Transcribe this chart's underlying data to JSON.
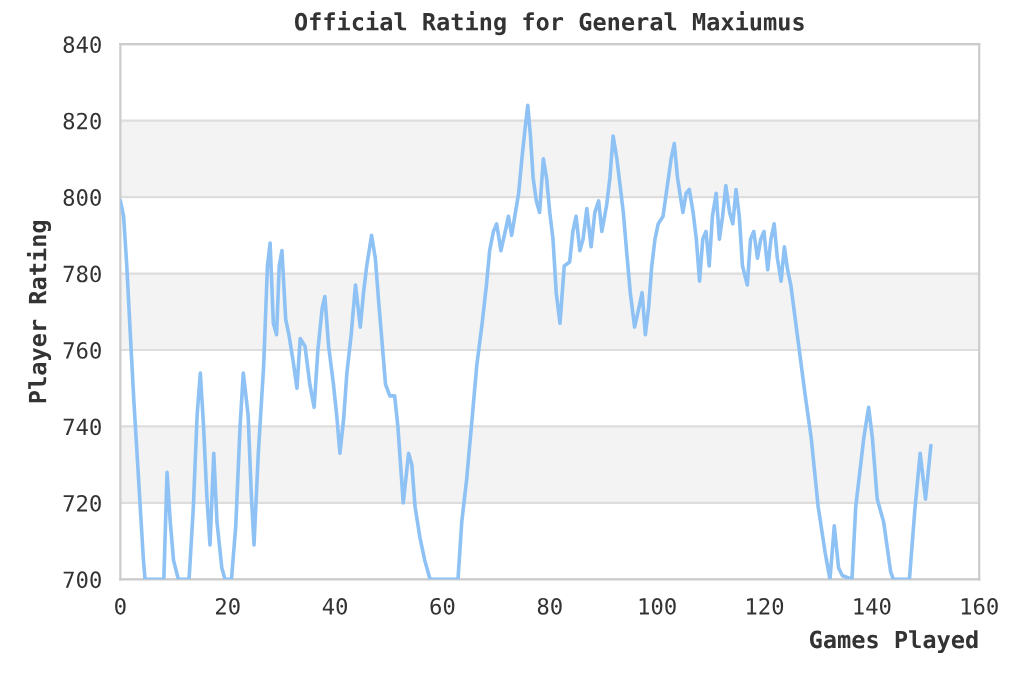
{
  "chart_data": {
    "type": "line",
    "title": "Official Rating for General Maxiumus",
    "xlabel": "Games Played",
    "ylabel": "Player Rating",
    "xlim": [
      0,
      160
    ],
    "xticks": [
      0,
      20,
      40,
      60,
      80,
      100,
      120,
      140,
      160
    ],
    "ylim": [
      700,
      840
    ],
    "yticks": [
      700,
      720,
      740,
      760,
      780,
      800,
      820,
      840
    ],
    "grid": "y",
    "marker": "none",
    "line_style": "solid",
    "bands": [
      {
        "axis": "y",
        "from": 720,
        "to": 740,
        "color": "#f3f3f3"
      },
      {
        "axis": "y",
        "from": 760,
        "to": 780,
        "color": "#f3f3f3"
      },
      {
        "axis": "y",
        "from": 800,
        "to": 820,
        "color": "#f3f3f3"
      }
    ],
    "series": [
      {
        "color": "#8ec2f5",
        "x": [
          0,
          0.6,
          1.2,
          1.9,
          2.5,
          3.1,
          3.7,
          4.3,
          4.6,
          8.1,
          8.7,
          9.3,
          9.9,
          10.8,
          12.8,
          13.6,
          14.3,
          14.9,
          15.5,
          16.1,
          16.7,
          17.4,
          18,
          18.9,
          19.5,
          20.7,
          21.5,
          22.3,
          22.9,
          23.8,
          24.4,
          24.9,
          25.7,
          26.7,
          27.4,
          27.9,
          28.5,
          29.1,
          29.6,
          30.1,
          30.8,
          31.4,
          32.2,
          32.9,
          33.5,
          34.4,
          35.3,
          36.1,
          36.8,
          37.6,
          38.1,
          38.8,
          39.7,
          40.3,
          40.9,
          41.6,
          42.2,
          43,
          43.8,
          44.7,
          45.3,
          45.9,
          46.8,
          47.5,
          48.1,
          48.7,
          49.4,
          50.2,
          51.1,
          51.7,
          52.7,
          53.7,
          54.3,
          54.9,
          55.8,
          56.7,
          57.7,
          62.9,
          63.6,
          64.5,
          65.4,
          66.4,
          67.4,
          68.2,
          68.8,
          69.5,
          70.1,
          70.9,
          71.7,
          72.3,
          72.9,
          73.6,
          74.2,
          74.8,
          75.4,
          75.9,
          76.4,
          76.9,
          77.5,
          78.1,
          78.8,
          79.4,
          80,
          80.6,
          81.2,
          81.9,
          82.7,
          83.7,
          84.3,
          84.9,
          85.6,
          86.2,
          86.9,
          87.7,
          88.4,
          89.1,
          89.7,
          90.6,
          91.2,
          91.8,
          92.5,
          93.1,
          93.7,
          94.3,
          95,
          95.8,
          96.6,
          97.2,
          97.8,
          98.4,
          99,
          99.6,
          100.2,
          101.1,
          101.9,
          102.6,
          103.2,
          103.8,
          104.8,
          105.4,
          106,
          106.7,
          107.3,
          107.9,
          108.5,
          109.1,
          109.7,
          110.3,
          111,
          111.6,
          112.2,
          112.8,
          113.5,
          114.1,
          114.7,
          115.3,
          115.9,
          116.8,
          117.4,
          118,
          118.7,
          119.3,
          119.9,
          120.6,
          121.2,
          121.8,
          122.4,
          123.1,
          123.7,
          124.3,
          124.9,
          126.2,
          127.5,
          128.7,
          130,
          131.3,
          132.2,
          133,
          133.8,
          134.5,
          136.3,
          137,
          138.5,
          139.4,
          140.1,
          141,
          142.2,
          143.5,
          144,
          147,
          148,
          149,
          150,
          151
        ],
        "values": [
          799,
          795,
          782,
          763,
          747,
          733,
          719,
          705,
          700,
          700,
          728,
          715,
          705,
          700,
          700,
          719,
          743,
          754,
          740,
          722,
          709,
          733,
          715,
          703,
          700,
          700,
          714,
          740,
          754,
          743,
          722,
          709,
          733,
          756,
          782,
          788,
          767,
          764,
          782,
          786,
          768,
          764,
          757,
          750,
          763,
          761,
          751,
          745,
          760,
          771,
          774,
          761,
          751,
          743,
          733,
          742,
          754,
          764,
          777,
          766,
          775,
          782,
          790,
          784,
          773,
          763,
          751,
          748,
          748,
          740,
          720,
          733,
          730,
          719,
          711,
          705,
          700,
          700,
          715,
          726,
          740,
          756,
          767,
          777,
          786,
          791,
          793,
          786,
          791,
          795,
          790,
          796,
          801,
          810,
          818,
          824,
          816,
          805,
          799,
          796,
          810,
          805,
          796,
          789,
          775,
          767,
          782,
          783,
          791,
          795,
          786,
          789,
          797,
          787,
          796,
          799,
          791,
          798,
          805,
          816,
          810,
          803,
          796,
          786,
          775,
          766,
          771,
          775,
          764,
          771,
          782,
          789,
          793,
          795,
          803,
          810,
          814,
          805,
          796,
          801,
          802,
          796,
          789,
          778,
          789,
          791,
          782,
          795,
          801,
          789,
          795,
          803,
          796,
          793,
          802,
          795,
          782,
          777,
          789,
          791,
          784,
          789,
          791,
          781,
          789,
          793,
          784,
          778,
          787,
          781,
          777,
          763,
          749,
          737,
          719,
          707,
          700,
          714,
          703,
          701,
          700,
          719,
          737,
          745,
          737,
          721,
          715,
          702,
          700,
          700,
          718,
          733,
          721,
          735
        ]
      }
    ]
  }
}
